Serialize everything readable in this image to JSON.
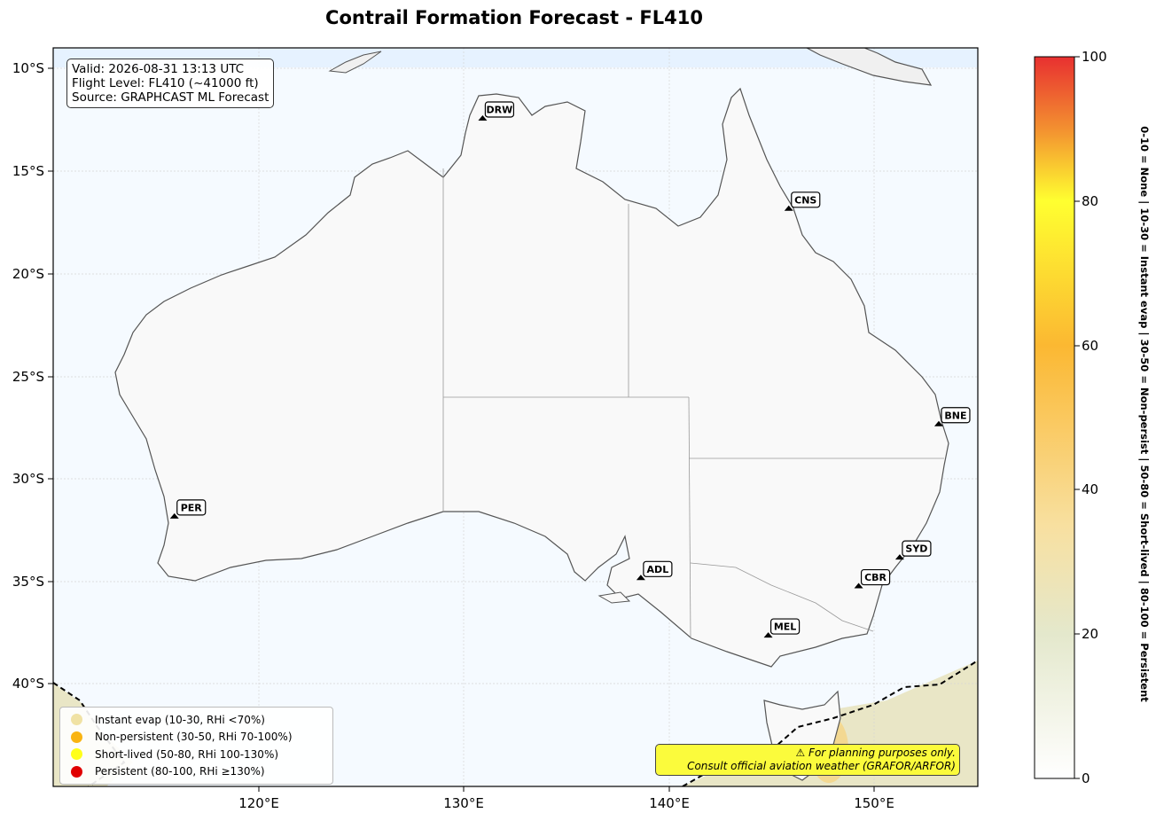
{
  "title": "Contrail Formation Forecast - FL410",
  "info": {
    "valid": "Valid: 2026-08-31 13:13 UTC",
    "level": "Flight Level: FL410 (~41000 ft)",
    "source": "Source: GRAPHCAST ML Forecast"
  },
  "lon_ticks": [
    "120°E",
    "130°E",
    "140°E",
    "150°E"
  ],
  "lat_ticks": [
    "10°S",
    "15°S",
    "20°S",
    "25°S",
    "30°S",
    "35°S",
    "40°S"
  ],
  "airports": [
    {
      "code": "DRW",
      "lon": 130.9,
      "lat": -12.5
    },
    {
      "code": "CNS",
      "lon": 145.8,
      "lat": -16.9
    },
    {
      "code": "BNE",
      "lon": 153.1,
      "lat": -27.4
    },
    {
      "code": "PER",
      "lon": 115.9,
      "lat": -31.9
    },
    {
      "code": "SYD",
      "lon": 151.2,
      "lat": -33.9
    },
    {
      "code": "ADL",
      "lon": 138.6,
      "lat": -34.9
    },
    {
      "code": "CBR",
      "lon": 149.2,
      "lat": -35.3
    },
    {
      "code": "MEL",
      "lon": 144.8,
      "lat": -37.7
    }
  ],
  "legend": [
    {
      "label": "Instant evap (10-30, RHi <70%)",
      "color": "#f0e2a4"
    },
    {
      "label": "Non-persistent (30-50, RHi 70-100%)",
      "color": "#f9b412"
    },
    {
      "label": "Short-lived (50-80, RHi 100-130%)",
      "color": "#ffff1a"
    },
    {
      "label": "Persistent (80-100, RHi ≥130%)",
      "color": "#e00000"
    }
  ],
  "warning": {
    "line1": "⚠ For planning purposes only.",
    "line2": "Consult official aviation weather (GRAFOR/ARFOR)"
  },
  "colorbar": {
    "ticks": [
      "0",
      "20",
      "40",
      "60",
      "80",
      "100"
    ],
    "label": "0-10 = None  |  10-30 = Instant evap  |  30-50 = Non-persist  |  50-80 = Short-lived  |  80-100 = Persistent"
  },
  "colors": {
    "ocean": "#f5faff",
    "land": "#f9f9f9",
    "coast": "#555555",
    "grid": "#d5d5d5"
  }
}
